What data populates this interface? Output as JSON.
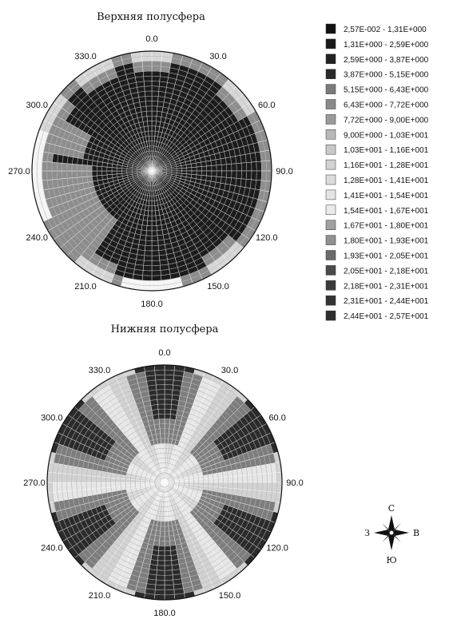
{
  "chart_data": [
    {
      "type": "heatmap",
      "projection": "polar-stereonet",
      "title": "Верхняя полусфера",
      "angle_labels": [
        "0.0",
        "30.0",
        "60.0",
        "90.0",
        "120.0",
        "150.0",
        "180.0",
        "210.0",
        "240.0",
        "270.0",
        "300.0",
        "330.0"
      ],
      "angle_values": [
        0,
        30,
        60,
        90,
        120,
        150,
        180,
        210,
        240,
        270,
        300,
        330
      ],
      "pattern": "upper"
    },
    {
      "type": "heatmap",
      "projection": "polar-stereonet",
      "title": "Нижняя полусфера",
      "angle_labels": [
        "0.0",
        "30.0",
        "60.0",
        "90.0",
        "120.0",
        "150.0",
        "180.0",
        "210.0",
        "240.0",
        "270.0",
        "300.0",
        "330.0"
      ],
      "angle_values": [
        0,
        30,
        60,
        90,
        120,
        150,
        180,
        210,
        240,
        270,
        300,
        330
      ],
      "pattern": "lower"
    }
  ],
  "legend": {
    "placement": "top-right",
    "items": [
      {
        "label": "2,57E-002 - 1,31E+000",
        "color": "#111111"
      },
      {
        "label": "1,31E+000 - 2,59E+000",
        "color": "#1a1a1a"
      },
      {
        "label": "2,59E+000 - 3,87E+000",
        "color": "#222222"
      },
      {
        "label": "3,87E+000 - 5,15E+000",
        "color": "#2a2a2a"
      },
      {
        "label": "5,15E+000 - 6,43E+000",
        "color": "#7a7a7a"
      },
      {
        "label": "6,43E+000 - 7,72E+000",
        "color": "#8a8a8a"
      },
      {
        "label": "7,72E+000 - 9,00E+000",
        "color": "#9a9a9a"
      },
      {
        "label": "9,00E+000 - 1,03E+001",
        "color": "#b8b8b8"
      },
      {
        "label": "1,03E+001 - 1,16E+001",
        "color": "#c8c8c8"
      },
      {
        "label": "1,16E+001 - 1,28E+001",
        "color": "#d2d2d2"
      },
      {
        "label": "1,28E+001 - 1,41E+001",
        "color": "#dcdcdc"
      },
      {
        "label": "1,41E+001 - 1,54E+001",
        "color": "#e4e4e4"
      },
      {
        "label": "1,54E+001 - 1,67E+001",
        "color": "#eaeaea"
      },
      {
        "label": "1,67E+001 - 1,80E+001",
        "color": "#a0a0a0"
      },
      {
        "label": "1,80E+001 - 1,93E+001",
        "color": "#909090"
      },
      {
        "label": "1,93E+001 - 2,05E+001",
        "color": "#6a6a6a"
      },
      {
        "label": "2,05E+001 - 2,18E+001",
        "color": "#4a4a4a"
      },
      {
        "label": "2,18E+001 - 2,31E+001",
        "color": "#3a3a3a"
      },
      {
        "label": "2,31E+001 - 2,44E+001",
        "color": "#333333"
      },
      {
        "label": "2,44E+001 - 2,57E+001",
        "color": "#2e2e2e"
      }
    ]
  },
  "compass": {
    "n": "С",
    "s": "Ю",
    "e": "В",
    "w": "З"
  }
}
